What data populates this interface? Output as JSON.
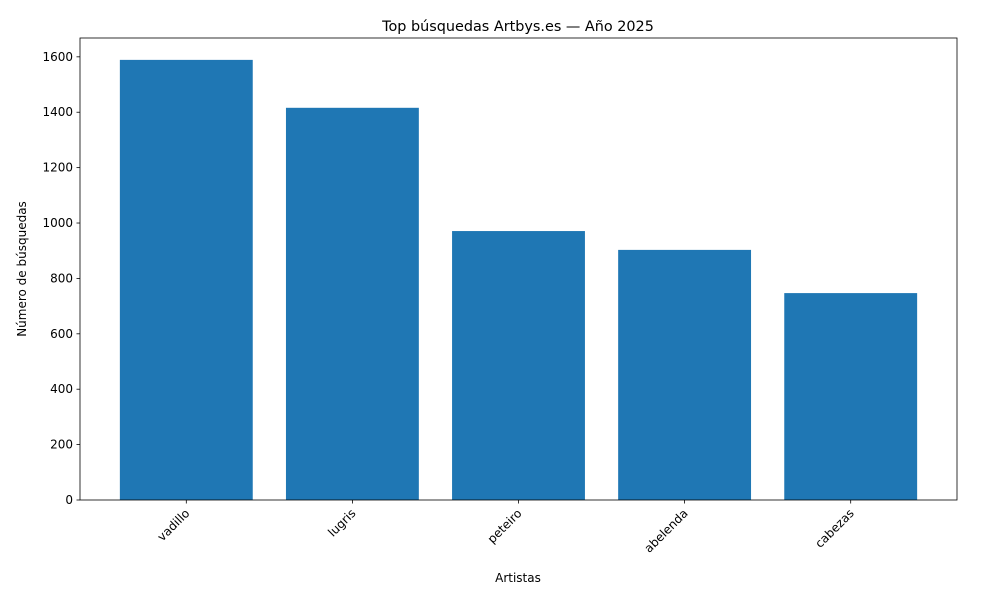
{
  "chart_data": {
    "type": "bar",
    "title": "Top búsquedas Artbys.es — Año 2025",
    "x_label": "Artistas",
    "y_label": "Número de búsquedas",
    "categories": [
      "vadillo",
      "lugris",
      "peteiro",
      "abelenda",
      "cabezas"
    ],
    "values": [
      1589,
      1416,
      971,
      903,
      747
    ],
    "color": "#1f77b4",
    "ylim": [
      0,
      1668
    ],
    "yticks": [
      0,
      200,
      400,
      600,
      800,
      1000,
      1200,
      1400,
      1600
    ],
    "grid": false
  }
}
